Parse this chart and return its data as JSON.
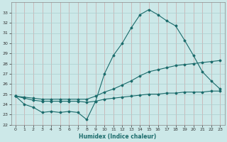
{
  "xlabel": "Humidex (Indice chaleur)",
  "bg_color": "#cce8e8",
  "grid_color": "#aacfcf",
  "line_color": "#1a6b6b",
  "xlim": [
    -0.5,
    23.5
  ],
  "ylim": [
    22,
    34
  ],
  "yticks": [
    22,
    23,
    24,
    25,
    26,
    27,
    28,
    29,
    30,
    31,
    32,
    33
  ],
  "xticks": [
    0,
    1,
    2,
    3,
    4,
    5,
    6,
    7,
    8,
    9,
    10,
    11,
    12,
    13,
    14,
    15,
    16,
    17,
    18,
    19,
    20,
    21,
    22,
    23
  ],
  "series1": [
    24.8,
    24.0,
    23.7,
    23.2,
    23.3,
    23.2,
    23.3,
    23.2,
    22.5,
    24.3,
    27.0,
    28.8,
    30.0,
    31.5,
    32.8,
    33.3,
    32.8,
    32.2,
    31.7,
    30.3,
    28.8,
    27.2,
    26.3,
    25.5
  ],
  "series2": [
    24.8,
    24.7,
    24.6,
    24.5,
    24.5,
    24.5,
    24.5,
    24.5,
    24.5,
    24.8,
    25.2,
    25.5,
    25.9,
    26.3,
    26.8,
    27.2,
    27.4,
    27.6,
    27.8,
    27.9,
    28.0,
    28.1,
    28.2,
    28.3
  ],
  "series3": [
    24.8,
    24.6,
    24.4,
    24.3,
    24.3,
    24.3,
    24.3,
    24.3,
    24.2,
    24.3,
    24.5,
    24.6,
    24.7,
    24.8,
    24.9,
    25.0,
    25.0,
    25.1,
    25.1,
    25.2,
    25.2,
    25.2,
    25.3,
    25.3
  ]
}
